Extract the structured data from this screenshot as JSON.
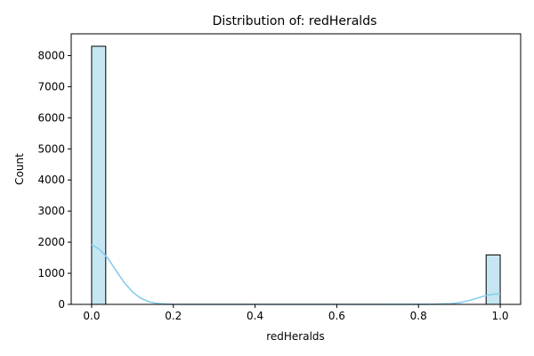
{
  "chart_data": {
    "type": "bar",
    "title": "Distribution of: redHeralds",
    "xlabel": "redHeralds",
    "ylabel": "Count",
    "xlim": [
      -0.05,
      1.05
    ],
    "ylim": [
      0,
      8700
    ],
    "x_ticks": [
      0.0,
      0.2,
      0.4,
      0.6,
      0.8,
      1.0
    ],
    "x_tick_labels": [
      "0.0",
      "0.2",
      "0.4",
      "0.6",
      "0.8",
      "1.0"
    ],
    "y_ticks": [
      0,
      1000,
      2000,
      3000,
      4000,
      5000,
      6000,
      7000,
      8000
    ],
    "y_tick_labels": [
      "0",
      "1000",
      "2000",
      "3000",
      "4000",
      "5000",
      "6000",
      "7000",
      "8000"
    ],
    "bin_width": 0.0345,
    "bars": [
      {
        "x_start": 0.0,
        "x_end": 0.0345,
        "count": 8300
      },
      {
        "x_start": 0.9655,
        "x_end": 1.0,
        "count": 1590
      }
    ],
    "kde": {
      "x": [
        0.0,
        0.02,
        0.04,
        0.06,
        0.08,
        0.1,
        0.12,
        0.14,
        0.16,
        0.18,
        0.2,
        0.3,
        0.5,
        0.7,
        0.8,
        0.84,
        0.88,
        0.9,
        0.92,
        0.94,
        0.96,
        0.98,
        1.0
      ],
      "y": [
        1920,
        1760,
        1480,
        1080,
        700,
        400,
        200,
        85,
        30,
        10,
        3,
        0,
        0,
        0,
        1,
        6,
        25,
        55,
        110,
        185,
        265,
        320,
        340
      ]
    },
    "grid": false,
    "legend": "none",
    "colors": {
      "bar_fill": "#c5e6f2",
      "bar_edge": "#000000",
      "kde_line": "#87ceeb"
    }
  }
}
